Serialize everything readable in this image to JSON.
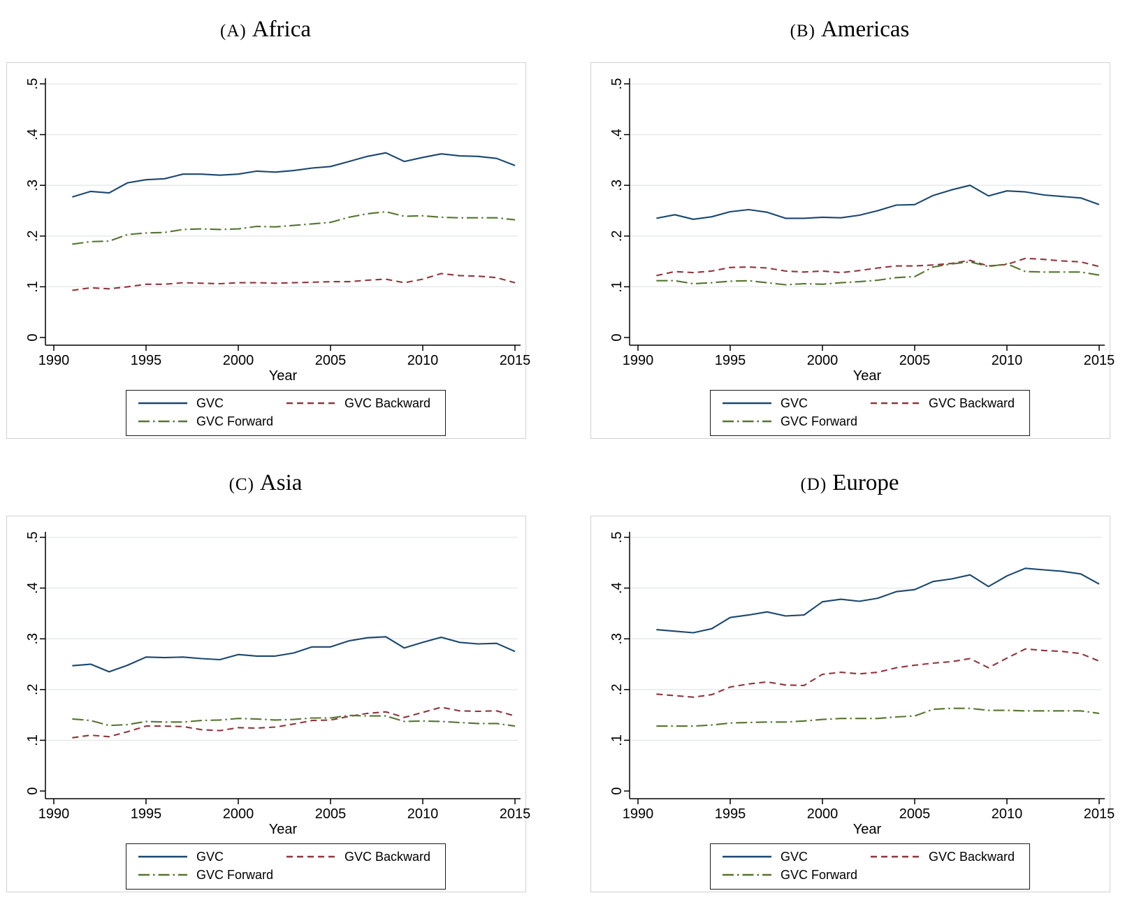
{
  "colors": {
    "gvc": "#1a476f",
    "gvc_backward": "#90353b",
    "gvc_forward": "#55752f",
    "gridline": "#e5e7e8",
    "frame": "#d2d2d2",
    "axis": "#000000",
    "legend_border": "#1a1a1a"
  },
  "chart_data": [
    {
      "type": "line",
      "panel_label": "(A)",
      "region": "Africa",
      "xlabel": "Year",
      "x_ticks": [
        1990,
        1995,
        2000,
        2005,
        2010,
        2015
      ],
      "y_ticks": [
        "0",
        ".1",
        ".2",
        ".3",
        ".4",
        ".5"
      ],
      "xlim": [
        1989.6,
        2015.4
      ],
      "ylim": [
        0,
        0.52
      ],
      "grid": "horizontal",
      "legend_position": "bottom",
      "years": [
        1991,
        1992,
        1993,
        1994,
        1995,
        1996,
        1997,
        1998,
        1999,
        2000,
        2001,
        2002,
        2003,
        2004,
        2005,
        2006,
        2007,
        2008,
        2009,
        2010,
        2011,
        2012,
        2013,
        2014,
        2015
      ],
      "series": [
        {
          "name": "GVC",
          "dash": "solid",
          "color": "#1a476f",
          "values": [
            0.277,
            0.288,
            0.285,
            0.305,
            0.311,
            0.313,
            0.322,
            0.322,
            0.32,
            0.322,
            0.328,
            0.326,
            0.329,
            0.334,
            0.337,
            0.347,
            0.357,
            0.364,
            0.347,
            0.355,
            0.362,
            0.358,
            0.357,
            0.353,
            0.339
          ]
        },
        {
          "name": "GVC Backward",
          "dash": "dash",
          "color": "#90353b",
          "values": [
            0.093,
            0.098,
            0.096,
            0.1,
            0.105,
            0.105,
            0.108,
            0.107,
            0.106,
            0.108,
            0.108,
            0.107,
            0.108,
            0.109,
            0.11,
            0.11,
            0.113,
            0.115,
            0.108,
            0.115,
            0.126,
            0.122,
            0.121,
            0.118,
            0.108
          ]
        },
        {
          "name": "GVC Forward",
          "dash": "dashdot",
          "color": "#55752f",
          "values": [
            0.184,
            0.189,
            0.19,
            0.203,
            0.206,
            0.207,
            0.213,
            0.214,
            0.213,
            0.214,
            0.219,
            0.218,
            0.221,
            0.224,
            0.227,
            0.237,
            0.244,
            0.248,
            0.239,
            0.24,
            0.237,
            0.236,
            0.236,
            0.236,
            0.232
          ]
        }
      ]
    },
    {
      "type": "line",
      "panel_label": "(B)",
      "region": "Americas",
      "xlabel": "Year",
      "x_ticks": [
        1990,
        1995,
        2000,
        2005,
        2010,
        2015
      ],
      "y_ticks": [
        "0",
        ".1",
        ".2",
        ".3",
        ".4",
        ".5"
      ],
      "xlim": [
        1989.6,
        2015.4
      ],
      "ylim": [
        0,
        0.52
      ],
      "grid": "horizontal",
      "legend_position": "bottom",
      "years": [
        1991,
        1992,
        1993,
        1994,
        1995,
        1996,
        1997,
        1998,
        1999,
        2000,
        2001,
        2002,
        2003,
        2004,
        2005,
        2006,
        2007,
        2008,
        2009,
        2010,
        2011,
        2012,
        2013,
        2014,
        2015
      ],
      "series": [
        {
          "name": "GVC",
          "dash": "solid",
          "color": "#1a476f",
          "values": [
            0.235,
            0.242,
            0.233,
            0.238,
            0.248,
            0.252,
            0.247,
            0.235,
            0.235,
            0.237,
            0.236,
            0.241,
            0.25,
            0.261,
            0.262,
            0.28,
            0.291,
            0.3,
            0.279,
            0.289,
            0.287,
            0.281,
            0.278,
            0.275,
            0.262
          ]
        },
        {
          "name": "GVC Backward",
          "dash": "dash",
          "color": "#90353b",
          "values": [
            0.122,
            0.13,
            0.128,
            0.131,
            0.138,
            0.139,
            0.137,
            0.131,
            0.129,
            0.131,
            0.128,
            0.132,
            0.137,
            0.141,
            0.141,
            0.143,
            0.146,
            0.152,
            0.141,
            0.144,
            0.156,
            0.154,
            0.151,
            0.149,
            0.14
          ]
        },
        {
          "name": "GVC Forward",
          "dash": "dashdot",
          "color": "#55752f",
          "values": [
            0.112,
            0.112,
            0.106,
            0.108,
            0.111,
            0.112,
            0.108,
            0.104,
            0.106,
            0.105,
            0.108,
            0.11,
            0.113,
            0.118,
            0.12,
            0.139,
            0.145,
            0.149,
            0.14,
            0.145,
            0.13,
            0.129,
            0.129,
            0.129,
            0.123
          ]
        }
      ]
    },
    {
      "type": "line",
      "panel_label": "(C)",
      "region": "Asia",
      "xlabel": "Year",
      "x_ticks": [
        1990,
        1995,
        2000,
        2005,
        2010,
        2015
      ],
      "y_ticks": [
        "0",
        ".1",
        ".2",
        ".3",
        ".4",
        ".5"
      ],
      "xlim": [
        1989.6,
        2015.4
      ],
      "ylim": [
        0,
        0.52
      ],
      "grid": "horizontal",
      "legend_position": "bottom",
      "years": [
        1991,
        1992,
        1993,
        1994,
        1995,
        1996,
        1997,
        1998,
        1999,
        2000,
        2001,
        2002,
        2003,
        2004,
        2005,
        2006,
        2007,
        2008,
        2009,
        2010,
        2011,
        2012,
        2013,
        2014,
        2015
      ],
      "series": [
        {
          "name": "GVC",
          "dash": "solid",
          "color": "#1a476f",
          "values": [
            0.247,
            0.25,
            0.235,
            0.248,
            0.264,
            0.263,
            0.264,
            0.261,
            0.259,
            0.269,
            0.266,
            0.266,
            0.272,
            0.284,
            0.284,
            0.296,
            0.302,
            0.304,
            0.282,
            0.293,
            0.303,
            0.293,
            0.29,
            0.291,
            0.275
          ]
        },
        {
          "name": "GVC Backward",
          "dash": "dash",
          "color": "#90353b",
          "values": [
            0.105,
            0.11,
            0.107,
            0.117,
            0.128,
            0.128,
            0.127,
            0.121,
            0.119,
            0.125,
            0.124,
            0.126,
            0.132,
            0.139,
            0.14,
            0.147,
            0.153,
            0.156,
            0.145,
            0.155,
            0.165,
            0.158,
            0.157,
            0.158,
            0.148
          ]
        },
        {
          "name": "GVC Forward",
          "dash": "dashdot",
          "color": "#55752f",
          "values": [
            0.142,
            0.139,
            0.129,
            0.131,
            0.137,
            0.136,
            0.136,
            0.139,
            0.14,
            0.143,
            0.142,
            0.14,
            0.141,
            0.144,
            0.144,
            0.149,
            0.148,
            0.148,
            0.137,
            0.138,
            0.137,
            0.135,
            0.133,
            0.133,
            0.128
          ]
        }
      ]
    },
    {
      "type": "line",
      "panel_label": "(D)",
      "region": "Europe",
      "xlabel": "Year",
      "x_ticks": [
        1990,
        1995,
        2000,
        2005,
        2010,
        2015
      ],
      "y_ticks": [
        "0",
        ".1",
        ".2",
        ".3",
        ".4",
        ".5"
      ],
      "xlim": [
        1989.6,
        2015.4
      ],
      "ylim": [
        0,
        0.52
      ],
      "grid": "horizontal",
      "legend_position": "bottom",
      "years": [
        1991,
        1992,
        1993,
        1994,
        1995,
        1996,
        1997,
        1998,
        1999,
        2000,
        2001,
        2002,
        2003,
        2004,
        2005,
        2006,
        2007,
        2008,
        2009,
        2010,
        2011,
        2012,
        2013,
        2014,
        2015
      ],
      "series": [
        {
          "name": "GVC",
          "dash": "solid",
          "color": "#1a476f",
          "values": [
            0.318,
            0.315,
            0.312,
            0.32,
            0.342,
            0.347,
            0.353,
            0.345,
            0.347,
            0.373,
            0.378,
            0.374,
            0.38,
            0.393,
            0.397,
            0.413,
            0.418,
            0.426,
            0.403,
            0.424,
            0.439,
            0.436,
            0.433,
            0.428,
            0.408
          ]
        },
        {
          "name": "GVC Backward",
          "dash": "dash",
          "color": "#90353b",
          "values": [
            0.191,
            0.188,
            0.185,
            0.19,
            0.205,
            0.211,
            0.215,
            0.209,
            0.208,
            0.23,
            0.234,
            0.231,
            0.234,
            0.243,
            0.248,
            0.252,
            0.255,
            0.261,
            0.243,
            0.262,
            0.28,
            0.277,
            0.275,
            0.271,
            0.256
          ]
        },
        {
          "name": "GVC Forward",
          "dash": "dashdot",
          "color": "#55752f",
          "values": [
            0.128,
            0.128,
            0.128,
            0.13,
            0.134,
            0.135,
            0.136,
            0.136,
            0.138,
            0.141,
            0.143,
            0.143,
            0.143,
            0.146,
            0.148,
            0.161,
            0.163,
            0.163,
            0.159,
            0.159,
            0.158,
            0.158,
            0.158,
            0.158,
            0.153
          ]
        }
      ]
    }
  ]
}
